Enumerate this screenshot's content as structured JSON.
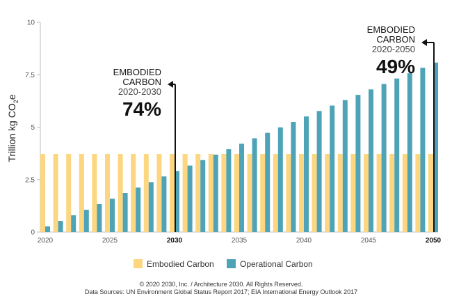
{
  "chart_data": {
    "type": "bar",
    "title": "",
    "ylabel": "Trillion kg CO2e",
    "ylabel_main": "Trillion kg CO",
    "ylabel_sub": "2",
    "ylabel_tail": "e",
    "ylim": [
      0,
      10
    ],
    "xlim": [
      2020,
      2050
    ],
    "yticks": [
      0,
      2.5,
      5,
      7.5,
      10
    ],
    "ytick_labels": [
      "0",
      "2.5",
      "5",
      "7.5",
      "10"
    ],
    "xticks": [
      2020,
      2025,
      2030,
      2035,
      2040,
      2045,
      2050
    ],
    "xtick_labels": [
      "2020",
      "2025",
      "2030",
      "2035",
      "2040",
      "2045",
      "2050"
    ],
    "bold_xticks": [
      "2030",
      "2050"
    ],
    "x": [
      2020,
      2021,
      2022,
      2023,
      2024,
      2025,
      2026,
      2027,
      2028,
      2029,
      2030,
      2031,
      2032,
      2033,
      2034,
      2035,
      2036,
      2037,
      2038,
      2039,
      2040,
      2041,
      2042,
      2043,
      2044,
      2045,
      2046,
      2047,
      2048,
      2049,
      2050
    ],
    "series": [
      {
        "name": "Embodied Carbon",
        "color": "#fcd680",
        "values": [
          3.72,
          3.72,
          3.72,
          3.72,
          3.72,
          3.72,
          3.72,
          3.72,
          3.72,
          3.72,
          3.72,
          3.72,
          3.72,
          3.72,
          3.72,
          3.72,
          3.72,
          3.72,
          3.72,
          3.72,
          3.72,
          3.72,
          3.72,
          3.72,
          3.72,
          3.72,
          3.72,
          3.72,
          3.72,
          3.72,
          3.72
        ]
      },
      {
        "name": "Operational Carbon",
        "color": "#4fa3b7",
        "values": [
          0.27,
          0.53,
          0.8,
          1.06,
          1.33,
          1.59,
          1.86,
          2.12,
          2.38,
          2.65,
          2.91,
          3.17,
          3.43,
          3.69,
          3.95,
          4.21,
          4.47,
          4.73,
          4.99,
          5.25,
          5.51,
          5.77,
          6.03,
          6.29,
          6.54,
          6.8,
          7.06,
          7.32,
          7.57,
          7.83,
          8.08
        ]
      }
    ],
    "annotations": [
      {
        "line1": "EMBODIED",
        "line2": "CARBON",
        "range": "2020-2030",
        "percent": "74%",
        "at": 2030
      },
      {
        "line1": "EMBODIED",
        "line2": "CARBON",
        "range": "2020-2050",
        "percent": "49%",
        "at": 2050
      }
    ],
    "legend_position": "bottom",
    "grid": false
  },
  "footer": {
    "copyright": "© 2020 2030, Inc. / Architecture 2030. All Rights Reserved.",
    "sources": "Data Sources: UN Environment Global Status Report 2017; EIA International Energy Outlook 2017"
  }
}
